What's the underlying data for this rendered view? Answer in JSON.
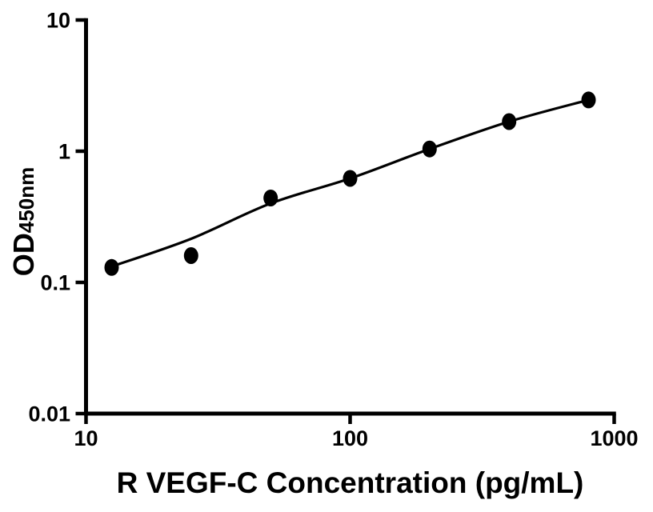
{
  "chart_data": {
    "type": "scatter",
    "title": "",
    "xlabel": "R VEGF-C Concentration (pg/mL)",
    "ylabel_main": "OD",
    "ylabel_sub": "450nm",
    "x_scale": "log",
    "y_scale": "log",
    "xlim": [
      10,
      1000
    ],
    "ylim": [
      0.01,
      10
    ],
    "x_ticks": [
      {
        "value": 10,
        "label": "10"
      },
      {
        "value": 100,
        "label": "100"
      },
      {
        "value": 1000,
        "label": "1000"
      }
    ],
    "y_ticks": [
      {
        "value": 0.01,
        "label": "0.01"
      },
      {
        "value": 0.1,
        "label": "0.1"
      },
      {
        "value": 1,
        "label": "1"
      },
      {
        "value": 10,
        "label": "10"
      }
    ],
    "grid": false,
    "legend": false,
    "background_color": "#ffffff",
    "axis_color": "#000000",
    "marker_color": "#000000",
    "line_color": "#000000",
    "series": [
      {
        "name": "standard-points",
        "type": "scatter",
        "marker": "filled-circle",
        "x": [
          12.5,
          25,
          50,
          100,
          200,
          400,
          800
        ],
        "y": [
          0.13,
          0.16,
          0.44,
          0.62,
          1.04,
          1.68,
          2.46
        ]
      },
      {
        "name": "fitted-curve",
        "type": "line",
        "x": [
          12.5,
          25,
          50,
          100,
          200,
          400,
          800
        ],
        "y": [
          0.132,
          0.215,
          0.4,
          0.62,
          1.04,
          1.68,
          2.46
        ]
      }
    ]
  }
}
